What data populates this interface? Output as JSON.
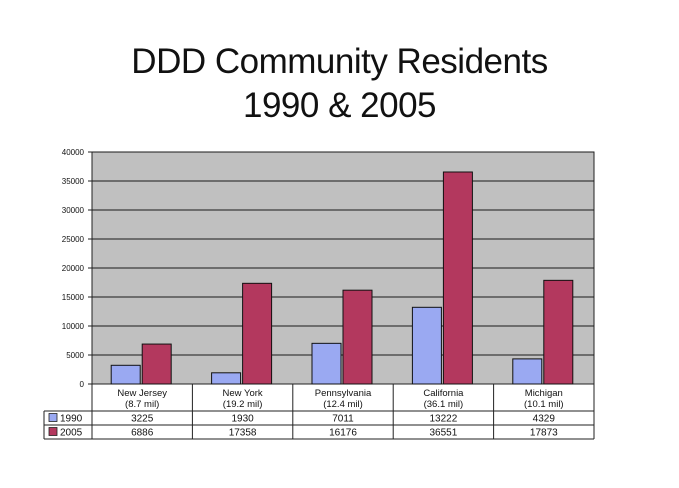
{
  "chart_data": {
    "type": "bar",
    "title_line1": "DDD Community Residents",
    "title_line2": "1990 & 2005",
    "categories": [
      [
        "New Jersey",
        "(8.7 mil)"
      ],
      [
        "New York",
        "(19.2 mil)"
      ],
      [
        "Pennsylvania",
        "(12.4 mil)"
      ],
      [
        "California",
        "(36.1 mil)"
      ],
      [
        "Michigan",
        "(10.1 mil)"
      ]
    ],
    "series": [
      {
        "name": "1990",
        "color": "#9aa9f2",
        "values": [
          3225,
          1930,
          7011,
          13222,
          4329
        ]
      },
      {
        "name": "2005",
        "color": "#b3385e",
        "values": [
          6886,
          17358,
          16176,
          36551,
          17873
        ]
      }
    ],
    "ylim": [
      0,
      40000
    ],
    "yticks": [
      0,
      5000,
      10000,
      15000,
      20000,
      25000,
      30000,
      35000,
      40000
    ],
    "grid": true,
    "plot_background": "#c0c0c0",
    "data_table": true
  }
}
